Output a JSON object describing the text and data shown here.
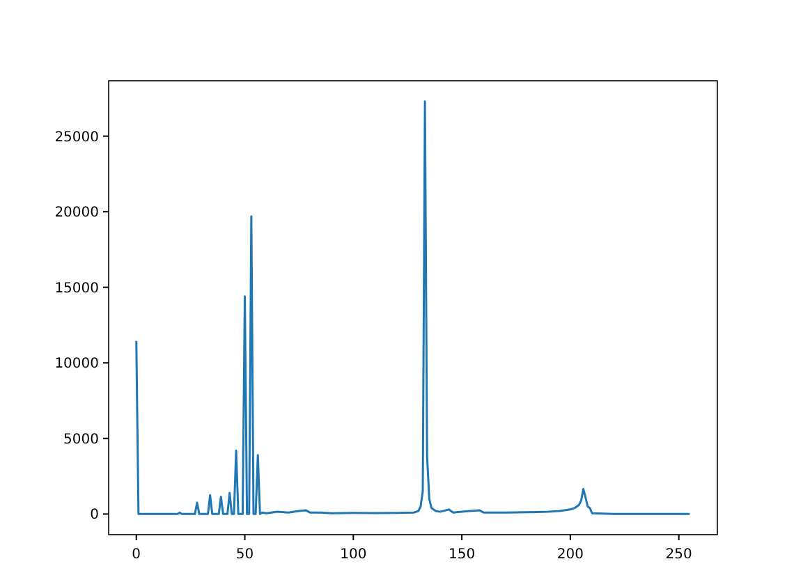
{
  "chart_data": {
    "type": "line",
    "xlim": [
      -12.75,
      267.75
    ],
    "ylim": [
      -1365,
      28665
    ],
    "xticks": [
      0,
      50,
      100,
      150,
      200,
      250
    ],
    "yticks": [
      0,
      5000,
      10000,
      15000,
      20000,
      25000
    ],
    "series": [
      {
        "color": "#1f77b4",
        "x": [
          0,
          1,
          2,
          19,
          20,
          21,
          27,
          28,
          29,
          33,
          34,
          35,
          38,
          39,
          40,
          42,
          43,
          44,
          45,
          46,
          47,
          49,
          50,
          51,
          52,
          53,
          54,
          55,
          56,
          57,
          58,
          60,
          65,
          70,
          75,
          78,
          80,
          85,
          90,
          100,
          110,
          120,
          128,
          130,
          131,
          132,
          133,
          134,
          135,
          136,
          138,
          140,
          144,
          146,
          150,
          158,
          160,
          170,
          180,
          190,
          195,
          200,
          202,
          204,
          205,
          206,
          207,
          208,
          209,
          210,
          220,
          230,
          240,
          250,
          255
        ],
        "values": [
          11450,
          0,
          0,
          0,
          100,
          0,
          0,
          750,
          0,
          0,
          1250,
          0,
          0,
          1150,
          0,
          0,
          1400,
          0,
          0,
          4200,
          0,
          0,
          14400,
          0,
          0,
          19700,
          0,
          0,
          3900,
          0,
          100,
          50,
          150,
          100,
          200,
          250,
          100,
          100,
          50,
          80,
          60,
          80,
          100,
          200,
          500,
          1500,
          27300,
          3800,
          1000,
          400,
          200,
          150,
          300,
          100,
          150,
          250,
          100,
          100,
          120,
          150,
          200,
          300,
          400,
          600,
          900,
          1650,
          1100,
          500,
          400,
          50,
          0,
          0,
          0,
          0,
          0
        ]
      }
    ]
  }
}
